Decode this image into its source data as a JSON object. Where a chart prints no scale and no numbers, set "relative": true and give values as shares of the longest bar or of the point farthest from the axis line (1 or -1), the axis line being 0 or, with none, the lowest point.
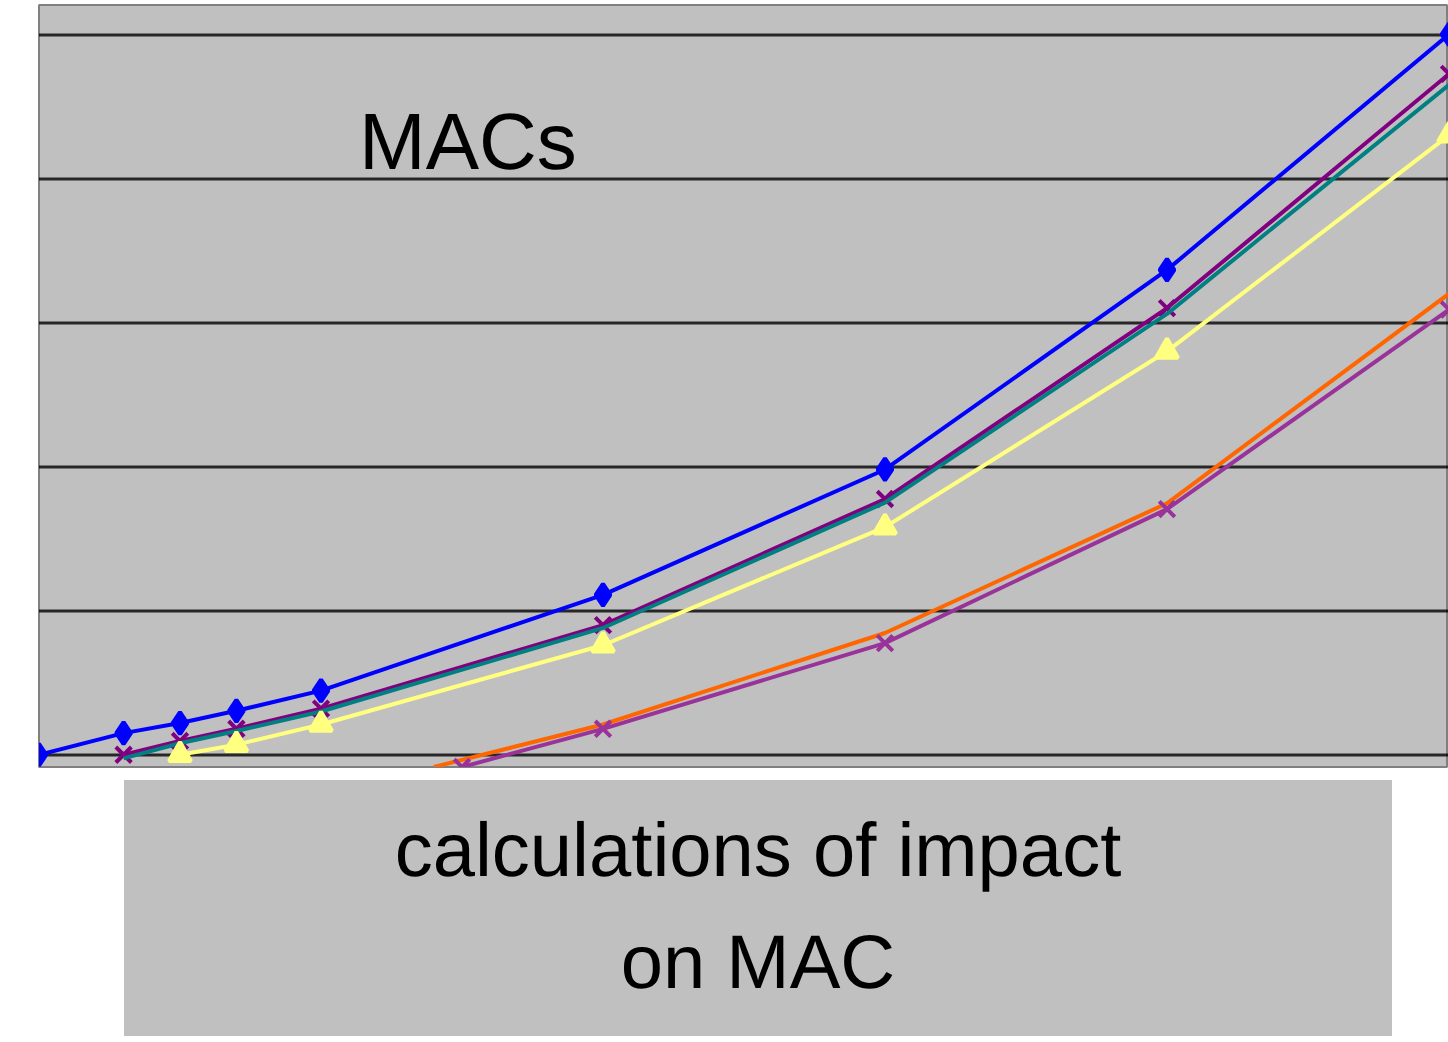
{
  "chart_data": {
    "type": "line",
    "relative": true,
    "grid": "y",
    "tick_labels": false,
    "annotations": [
      "MACs",
      "calculations of impact on MAC"
    ],
    "categories": [
      null,
      null,
      null,
      null,
      null,
      null,
      null,
      null,
      null,
      null,
      null,
      null,
      null,
      null,
      null,
      null,
      null,
      null,
      null,
      null,
      null,
      null,
      null,
      null,
      null,
      null,
      null,
      null,
      null,
      null,
      null,
      null,
      null,
      null,
      null,
      null,
      null,
      null,
      null,
      null,
      null,
      null,
      null,
      null,
      null,
      null,
      null,
      null,
      null,
      null,
      null
    ],
    "series": [
      {
        "color": "#0000ff",
        "marker": "diamond",
        "values": [
          0,
          null,
          null,
          0.03,
          null,
          0.044,
          null,
          0.061,
          null,
          null,
          0.089,
          null,
          null,
          null,
          null,
          null,
          null,
          null,
          null,
          null,
          0.222,
          null,
          null,
          null,
          null,
          null,
          null,
          null,
          null,
          null,
          0.396,
          null,
          null,
          null,
          null,
          null,
          null,
          null,
          null,
          null,
          0.673,
          null,
          null,
          null,
          null,
          null,
          null,
          null,
          null,
          null,
          1
        ]
      },
      {
        "color": "#800080",
        "marker": "cross",
        "values": [
          null,
          null,
          null,
          0,
          null,
          0.019,
          null,
          0.036,
          null,
          null,
          0.064,
          null,
          null,
          null,
          null,
          null,
          null,
          null,
          null,
          null,
          0.18,
          null,
          null,
          null,
          null,
          null,
          null,
          null,
          null,
          null,
          0.355,
          null,
          null,
          null,
          null,
          null,
          null,
          null,
          null,
          null,
          0.62,
          null,
          null,
          null,
          null,
          null,
          null,
          null,
          null,
          null,
          0.945
        ]
      },
      {
        "color": "#008080",
        "marker": "none",
        "values": [
          null,
          null,
          null,
          -0.005,
          null,
          0.016,
          null,
          0.033,
          null,
          null,
          0.06,
          null,
          null,
          null,
          null,
          null,
          null,
          null,
          null,
          null,
          0.176,
          null,
          null,
          null,
          null,
          null,
          null,
          null,
          null,
          null,
          0.35,
          null,
          null,
          null,
          null,
          null,
          null,
          null,
          null,
          null,
          0.612,
          null,
          null,
          null,
          null,
          null,
          null,
          null,
          null,
          null,
          0.93
        ]
      },
      {
        "color": "#ffff80",
        "marker": "triangle",
        "values": [
          null,
          null,
          null,
          null,
          null,
          0,
          null,
          0.014,
          null,
          null,
          0.042,
          null,
          null,
          null,
          null,
          null,
          null,
          null,
          null,
          null,
          0.152,
          null,
          null,
          null,
          null,
          null,
          null,
          null,
          null,
          null,
          0.316,
          null,
          null,
          null,
          null,
          null,
          null,
          null,
          null,
          null,
          0.56,
          null,
          null,
          null,
          null,
          null,
          null,
          null,
          null,
          null,
          0.86
        ]
      },
      {
        "color": "#ff6600",
        "marker": "none",
        "values": [
          null,
          null,
          null,
          null,
          null,
          null,
          null,
          null,
          null,
          null,
          null,
          null,
          null,
          null,
          -0.017,
          null,
          null,
          null,
          null,
          null,
          0.042,
          null,
          null,
          null,
          null,
          null,
          null,
          null,
          null,
          null,
          0.169,
          null,
          null,
          null,
          null,
          null,
          null,
          null,
          null,
          null,
          0.349,
          null,
          null,
          null,
          null,
          null,
          null,
          null,
          null,
          null,
          0.64
        ]
      },
      {
        "color": "#993399",
        "marker": "cross",
        "values": [
          null,
          null,
          null,
          null,
          null,
          null,
          null,
          null,
          null,
          null,
          null,
          null,
          null,
          null,
          null,
          -0.017,
          null,
          null,
          null,
          null,
          0.036,
          null,
          null,
          null,
          null,
          null,
          null,
          null,
          null,
          null,
          0.155,
          null,
          null,
          null,
          null,
          null,
          null,
          null,
          null,
          null,
          0.341,
          null,
          null,
          null,
          null,
          null,
          null,
          null,
          null,
          null,
          0.618
        ]
      }
    ]
  }
}
